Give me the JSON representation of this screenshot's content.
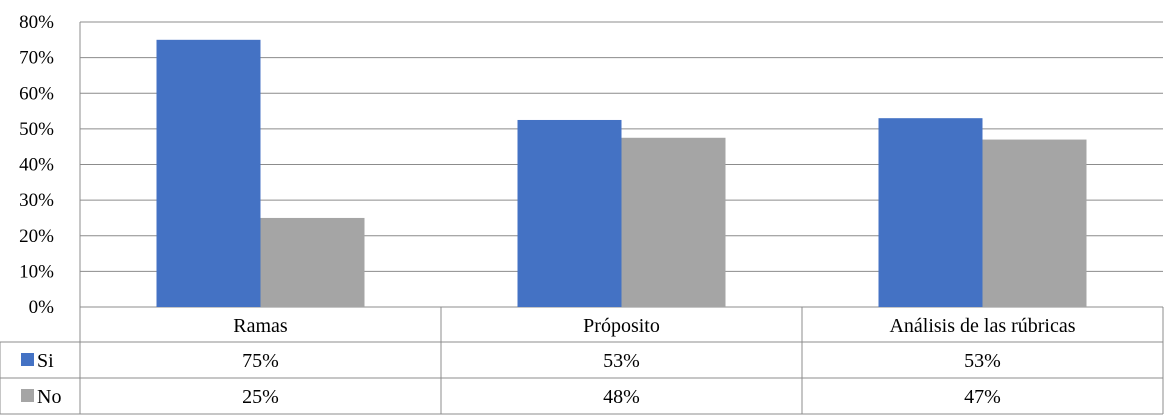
{
  "chart_data": {
    "type": "bar",
    "categories": [
      "Ramas",
      "Próposito",
      "Análisis de las rúbricas"
    ],
    "series": [
      {
        "name": "Si",
        "values": [
          75,
          52.5,
          53
        ],
        "labels": [
          "75%",
          "53%",
          "53%"
        ],
        "color": "#4472C4"
      },
      {
        "name": "No",
        "values": [
          25,
          47.5,
          47
        ],
        "labels": [
          "25%",
          "48%",
          "47%"
        ],
        "color": "#A5A5A5"
      }
    ],
    "ylim": [
      0,
      80
    ],
    "yticks": [
      0,
      10,
      20,
      30,
      40,
      50,
      60,
      70,
      80
    ],
    "ytick_labels": [
      "0%",
      "10%",
      "20%",
      "30%",
      "40%",
      "50%",
      "60%",
      "70%",
      "80%"
    ],
    "grid": true,
    "legend": "data-table",
    "title": "",
    "xlabel": "",
    "ylabel": ""
  }
}
